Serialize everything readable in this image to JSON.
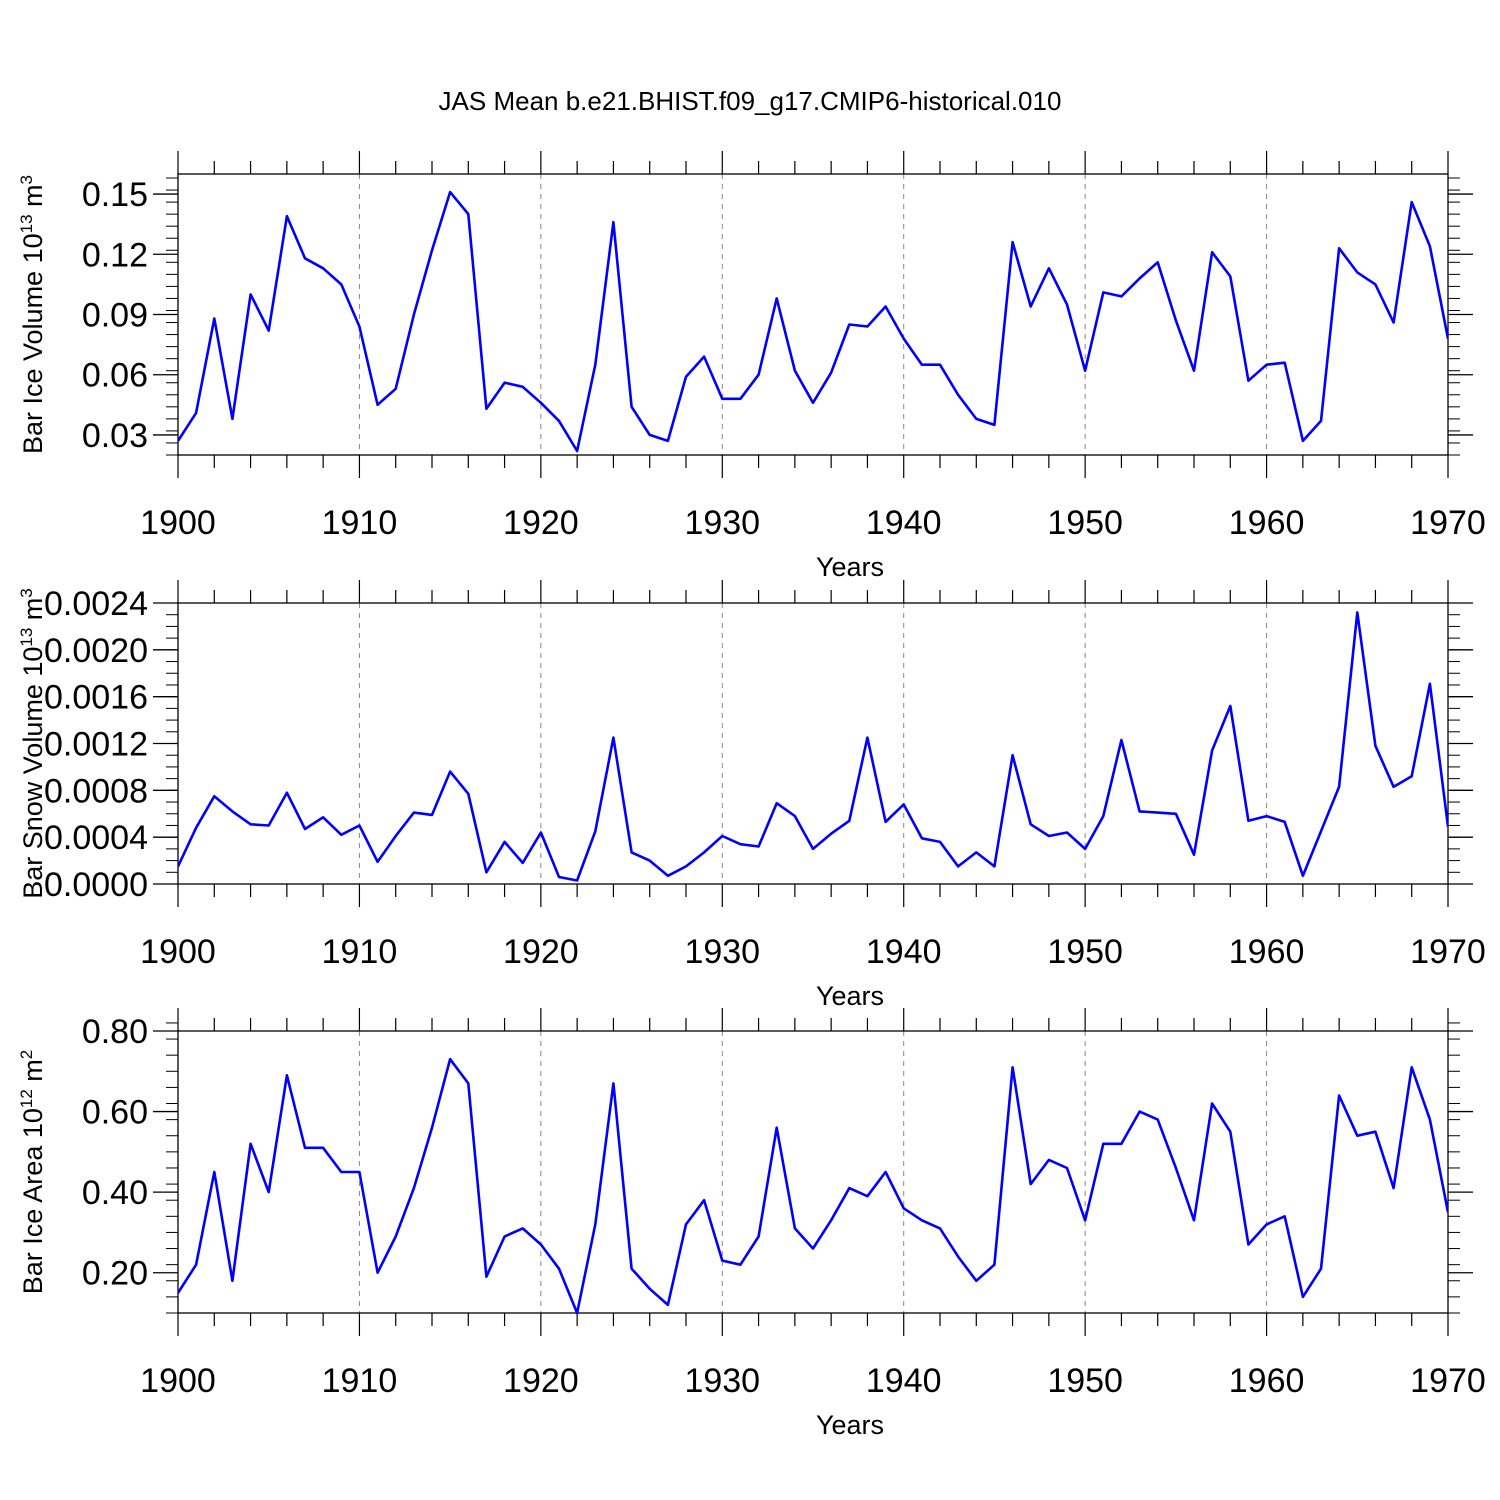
{
  "title": "JAS Mean b.e21.BHIST.f09_g17.CMIP6-historical.010",
  "colors": {
    "line": "#0000ff",
    "axis": "#000000",
    "grid": "#888888"
  },
  "chart_data": [
    {
      "type": "line",
      "title": "JAS Mean b.e21.BHIST.f09_g17.CMIP6-historical.010",
      "xlabel": "Years",
      "ylabel": "Bar Ice Volume 10",
      "ylabel_sup": "13",
      "ylabel_unit": " m",
      "ylabel_unit_sup": "3",
      "xlim": [
        1900,
        1970
      ],
      "ylim": [
        0.02,
        0.16
      ],
      "xticks": [
        1900,
        1910,
        1920,
        1930,
        1940,
        1950,
        1960,
        1970
      ],
      "xtick_labels": [
        "1900",
        "1910",
        "1920",
        "1930",
        "1940",
        "1950",
        "1960",
        "1970"
      ],
      "yticks": [
        0.03,
        0.06,
        0.09,
        0.12,
        0.15
      ],
      "ytick_labels": [
        "0.03",
        "0.06",
        "0.09",
        "0.12",
        "0.15"
      ],
      "y_minor_step": 0.006,
      "grid": "vertical dashed at major x ticks",
      "x": [
        1900,
        1901,
        1902,
        1903,
        1904,
        1905,
        1906,
        1907,
        1908,
        1909,
        1910,
        1911,
        1912,
        1913,
        1914,
        1915,
        1916,
        1917,
        1918,
        1919,
        1920,
        1921,
        1922,
        1923,
        1924,
        1925,
        1926,
        1927,
        1928,
        1929,
        1930,
        1931,
        1932,
        1933,
        1934,
        1935,
        1936,
        1937,
        1938,
        1939,
        1940,
        1941,
        1942,
        1943,
        1944,
        1945,
        1946,
        1947,
        1948,
        1949,
        1950,
        1951,
        1952,
        1953,
        1954,
        1955,
        1956,
        1957,
        1958,
        1959,
        1960,
        1961,
        1962,
        1963,
        1964,
        1965,
        1966,
        1967,
        1968,
        1969,
        1970
      ],
      "values": [
        0.027,
        0.041,
        0.088,
        0.038,
        0.1,
        0.082,
        0.139,
        0.118,
        0.113,
        0.105,
        0.084,
        0.045,
        0.053,
        0.09,
        0.122,
        0.151,
        0.14,
        0.043,
        0.056,
        0.054,
        0.046,
        0.037,
        0.022,
        0.065,
        0.136,
        0.044,
        0.03,
        0.027,
        0.059,
        0.069,
        0.048,
        0.048,
        0.06,
        0.098,
        0.062,
        0.046,
        0.061,
        0.085,
        0.084,
        0.094,
        0.078,
        0.065,
        0.065,
        0.05,
        0.038,
        0.035,
        0.126,
        0.094,
        0.113,
        0.095,
        0.062,
        0.101,
        0.099,
        0.108,
        0.116,
        0.087,
        0.062,
        0.121,
        0.109,
        0.057,
        0.065,
        0.066,
        0.027,
        0.037,
        0.123,
        0.111,
        0.105,
        0.086,
        0.146,
        0.124,
        0.078
      ]
    },
    {
      "type": "line",
      "xlabel": "Years",
      "ylabel": "Bar Snow Volume 10",
      "ylabel_sup": "13",
      "ylabel_unit": " m",
      "ylabel_unit_sup": "3",
      "xlim": [
        1900,
        1970
      ],
      "ylim": [
        0.0,
        0.0024
      ],
      "xticks": [
        1900,
        1910,
        1920,
        1930,
        1940,
        1950,
        1960,
        1970
      ],
      "xtick_labels": [
        "1900",
        "1910",
        "1920",
        "1930",
        "1940",
        "1950",
        "1960",
        "1970"
      ],
      "yticks": [
        0.0,
        0.0004,
        0.0008,
        0.0012,
        0.0016,
        0.002,
        0.0024
      ],
      "ytick_labels": [
        "0.0000",
        "0.0004",
        "0.0008",
        "0.0012",
        "0.0016",
        "0.0020",
        "0.0024"
      ],
      "y_minor_step": 0.0001,
      "grid": "vertical dashed at major x ticks",
      "x": [
        1900,
        1901,
        1902,
        1903,
        1904,
        1905,
        1906,
        1907,
        1908,
        1909,
        1910,
        1911,
        1912,
        1913,
        1914,
        1915,
        1916,
        1917,
        1918,
        1919,
        1920,
        1921,
        1922,
        1923,
        1924,
        1925,
        1926,
        1927,
        1928,
        1929,
        1930,
        1931,
        1932,
        1933,
        1934,
        1935,
        1936,
        1937,
        1938,
        1939,
        1940,
        1941,
        1942,
        1943,
        1944,
        1945,
        1946,
        1947,
        1948,
        1949,
        1950,
        1951,
        1952,
        1953,
        1954,
        1955,
        1956,
        1957,
        1958,
        1959,
        1960,
        1961,
        1962,
        1963,
        1964,
        1965,
        1966,
        1967,
        1968,
        1969,
        1970
      ],
      "values": [
        0.00015,
        0.00048,
        0.00075,
        0.00062,
        0.00051,
        0.0005,
        0.00078,
        0.00047,
        0.00057,
        0.00042,
        0.0005,
        0.00019,
        0.00041,
        0.00061,
        0.00059,
        0.00096,
        0.00077,
        0.0001,
        0.00036,
        0.00018,
        0.00044,
        6e-05,
        3e-05,
        0.00045,
        0.00125,
        0.00027,
        0.0002,
        7e-05,
        0.00015,
        0.00027,
        0.00041,
        0.00034,
        0.00032,
        0.00069,
        0.00058,
        0.0003,
        0.00043,
        0.00054,
        0.00125,
        0.00053,
        0.00068,
        0.00039,
        0.00036,
        0.00015,
        0.00027,
        0.00015,
        0.0011,
        0.00051,
        0.00041,
        0.00044,
        0.0003,
        0.00058,
        0.00123,
        0.00062,
        0.00061,
        0.0006,
        0.00025,
        0.00114,
        0.00152,
        0.00054,
        0.00058,
        0.00053,
        7e-05,
        0.00045,
        0.00083,
        0.00232,
        0.00118,
        0.00083,
        0.00092,
        0.00171,
        0.00049
      ]
    },
    {
      "type": "line",
      "xlabel": "Years",
      "ylabel": "Bar Ice Area 10",
      "ylabel_sup": "12",
      "ylabel_unit": " m",
      "ylabel_unit_sup": "2",
      "xlim": [
        1900,
        1970
      ],
      "ylim": [
        0.1,
        0.8
      ],
      "xticks": [
        1900,
        1910,
        1920,
        1930,
        1940,
        1950,
        1960,
        1970
      ],
      "xtick_labels": [
        "1900",
        "1910",
        "1920",
        "1930",
        "1940",
        "1950",
        "1960",
        "1970"
      ],
      "yticks": [
        0.2,
        0.4,
        0.6,
        0.8
      ],
      "ytick_labels": [
        "0.20",
        "0.40",
        "0.60",
        "0.80"
      ],
      "y_minor_step": 0.04,
      "grid": "vertical dashed at major x ticks",
      "x": [
        1900,
        1901,
        1902,
        1903,
        1904,
        1905,
        1906,
        1907,
        1908,
        1909,
        1910,
        1911,
        1912,
        1913,
        1914,
        1915,
        1916,
        1917,
        1918,
        1919,
        1920,
        1921,
        1922,
        1923,
        1924,
        1925,
        1926,
        1927,
        1928,
        1929,
        1930,
        1931,
        1932,
        1933,
        1934,
        1935,
        1936,
        1937,
        1938,
        1939,
        1940,
        1941,
        1942,
        1943,
        1944,
        1945,
        1946,
        1947,
        1948,
        1949,
        1950,
        1951,
        1952,
        1953,
        1954,
        1955,
        1956,
        1957,
        1958,
        1959,
        1960,
        1961,
        1962,
        1963,
        1964,
        1965,
        1966,
        1967,
        1968,
        1969,
        1970
      ],
      "values": [
        0.15,
        0.22,
        0.45,
        0.18,
        0.52,
        0.4,
        0.69,
        0.51,
        0.51,
        0.45,
        0.45,
        0.2,
        0.29,
        0.41,
        0.56,
        0.73,
        0.67,
        0.19,
        0.29,
        0.31,
        0.27,
        0.21,
        0.1,
        0.32,
        0.67,
        0.21,
        0.16,
        0.12,
        0.32,
        0.38,
        0.23,
        0.22,
        0.29,
        0.56,
        0.31,
        0.26,
        0.33,
        0.41,
        0.39,
        0.45,
        0.36,
        0.33,
        0.31,
        0.24,
        0.18,
        0.22,
        0.71,
        0.42,
        0.48,
        0.46,
        0.33,
        0.52,
        0.52,
        0.6,
        0.58,
        0.46,
        0.33,
        0.62,
        0.55,
        0.27,
        0.32,
        0.34,
        0.14,
        0.21,
        0.64,
        0.54,
        0.55,
        0.41,
        0.71,
        0.58,
        0.35
      ]
    }
  ]
}
